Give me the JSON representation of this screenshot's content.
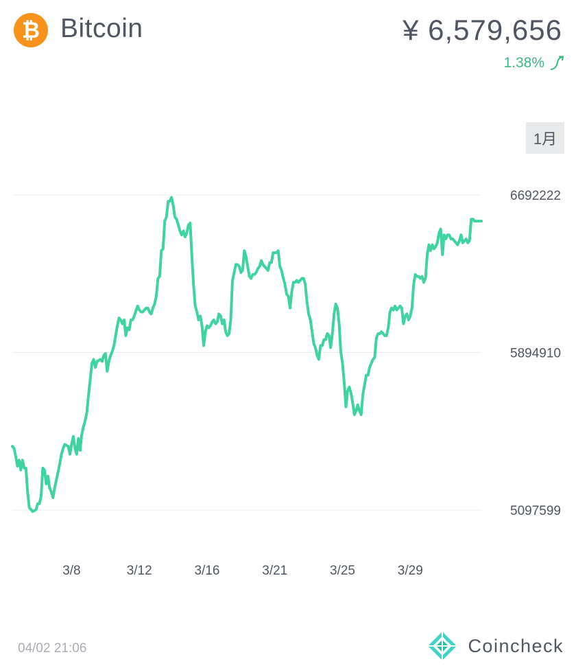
{
  "header": {
    "coin_symbol": "₿",
    "coin_name": "Bitcoin",
    "price": "¥ 6,579,656",
    "change": "1.38%"
  },
  "range_button": "1月",
  "footer": {
    "timestamp": "04/02 21:06",
    "brand": "Coincheck"
  },
  "colors": {
    "line": "#3fd3a0",
    "change_up": "#39b980",
    "coin": "#f7931a",
    "text": "#4f5561",
    "grid": "#ececec",
    "brand_logo": "#3fd3c8"
  },
  "chart_data": {
    "type": "line",
    "x_ticks": [
      "3/8",
      "3/12",
      "3/16",
      "3/21",
      "3/25",
      "3/29"
    ],
    "x_tick_positions": [
      4.2,
      8.2,
      12.2,
      16.2,
      20.2,
      24.2
    ],
    "y_ticks": [
      5097599,
      5894910,
      6692222
    ],
    "ylim": [
      5097599,
      6692222
    ],
    "xlim": [
      0.7,
      28.4
    ],
    "grid": true,
    "series": [
      {
        "values": [
          [
            0.7,
            5420000
          ],
          [
            0.8,
            5410000
          ],
          [
            0.9,
            5370000
          ],
          [
            1.0,
            5320000
          ],
          [
            1.1,
            5350000
          ],
          [
            1.2,
            5300000
          ],
          [
            1.3,
            5350000
          ],
          [
            1.4,
            5310000
          ],
          [
            1.5,
            5310000
          ],
          [
            1.6,
            5190000
          ],
          [
            1.7,
            5110000
          ],
          [
            1.8,
            5100000
          ],
          [
            1.9,
            5090000
          ],
          [
            2.1,
            5100000
          ],
          [
            2.2,
            5130000
          ],
          [
            2.3,
            5130000
          ],
          [
            2.4,
            5170000
          ],
          [
            2.5,
            5310000
          ],
          [
            2.6,
            5300000
          ],
          [
            2.7,
            5230000
          ],
          [
            2.8,
            5270000
          ],
          [
            2.9,
            5210000
          ],
          [
            3.0,
            5190000
          ],
          [
            3.1,
            5160000
          ],
          [
            3.2,
            5210000
          ],
          [
            3.4,
            5290000
          ],
          [
            3.5,
            5330000
          ],
          [
            3.6,
            5380000
          ],
          [
            3.7,
            5410000
          ],
          [
            3.8,
            5430000
          ],
          [
            4.0,
            5420000
          ],
          [
            4.1,
            5380000
          ],
          [
            4.2,
            5430000
          ],
          [
            4.3,
            5470000
          ],
          [
            4.4,
            5410000
          ],
          [
            4.5,
            5380000
          ],
          [
            4.6,
            5460000
          ],
          [
            4.7,
            5400000
          ],
          [
            4.8,
            5480000
          ],
          [
            4.9,
            5520000
          ],
          [
            5.0,
            5550000
          ],
          [
            5.1,
            5590000
          ],
          [
            5.2,
            5680000
          ],
          [
            5.3,
            5760000
          ],
          [
            5.4,
            5840000
          ],
          [
            5.5,
            5860000
          ],
          [
            5.6,
            5820000
          ],
          [
            5.7,
            5850000
          ],
          [
            5.9,
            5860000
          ],
          [
            6.0,
            5850000
          ],
          [
            6.1,
            5880000
          ],
          [
            6.2,
            5890000
          ],
          [
            6.3,
            5800000
          ],
          [
            6.4,
            5850000
          ],
          [
            6.5,
            5880000
          ],
          [
            6.6,
            5900000
          ],
          [
            6.7,
            5930000
          ],
          [
            6.8,
            5980000
          ],
          [
            6.9,
            6030000
          ],
          [
            7.0,
            6070000
          ],
          [
            7.1,
            6060000
          ],
          [
            7.2,
            6040000
          ],
          [
            7.3,
            6060000
          ],
          [
            7.4,
            5980000
          ],
          [
            7.5,
            6020000
          ],
          [
            7.6,
            6010000
          ],
          [
            7.7,
            6060000
          ],
          [
            7.8,
            6060000
          ],
          [
            7.9,
            6080000
          ],
          [
            8.1,
            6130000
          ],
          [
            8.2,
            6110000
          ],
          [
            8.3,
            6100000
          ],
          [
            8.4,
            6100000
          ],
          [
            8.6,
            6120000
          ],
          [
            8.7,
            6120000
          ],
          [
            8.8,
            6100000
          ],
          [
            8.9,
            6090000
          ],
          [
            9.0,
            6120000
          ],
          [
            9.1,
            6140000
          ],
          [
            9.2,
            6180000
          ],
          [
            9.3,
            6270000
          ],
          [
            9.4,
            6280000
          ],
          [
            9.5,
            6410000
          ],
          [
            9.6,
            6420000
          ],
          [
            9.7,
            6560000
          ],
          [
            9.8,
            6580000
          ],
          [
            9.9,
            6660000
          ],
          [
            10.0,
            6660000
          ],
          [
            10.1,
            6680000
          ],
          [
            10.2,
            6640000
          ],
          [
            10.3,
            6580000
          ],
          [
            10.4,
            6570000
          ],
          [
            10.5,
            6540000
          ],
          [
            10.6,
            6510000
          ],
          [
            10.7,
            6490000
          ],
          [
            10.8,
            6510000
          ],
          [
            10.9,
            6480000
          ],
          [
            11.0,
            6500000
          ],
          [
            11.1,
            6540000
          ],
          [
            11.2,
            6550000
          ],
          [
            11.3,
            6390000
          ],
          [
            11.4,
            6240000
          ],
          [
            11.5,
            6130000
          ],
          [
            11.6,
            6100000
          ],
          [
            11.7,
            6060000
          ],
          [
            11.8,
            6080000
          ],
          [
            11.9,
            6030000
          ],
          [
            12.0,
            5930000
          ],
          [
            12.1,
            6000000
          ],
          [
            12.2,
            6030000
          ],
          [
            12.3,
            6020000
          ],
          [
            12.4,
            6030000
          ],
          [
            12.5,
            6050000
          ],
          [
            12.6,
            6060000
          ],
          [
            12.7,
            6040000
          ],
          [
            12.8,
            6050000
          ],
          [
            12.9,
            6090000
          ],
          [
            13.0,
            6080000
          ],
          [
            13.1,
            6040000
          ],
          [
            13.2,
            6060000
          ],
          [
            13.3,
            6000000
          ],
          [
            13.4,
            5980000
          ],
          [
            13.5,
            5990000
          ],
          [
            13.6,
            6060000
          ],
          [
            13.7,
            6260000
          ],
          [
            13.8,
            6300000
          ],
          [
            13.9,
            6340000
          ],
          [
            14.0,
            6340000
          ],
          [
            14.1,
            6330000
          ],
          [
            14.2,
            6300000
          ],
          [
            14.3,
            6310000
          ],
          [
            14.4,
            6410000
          ],
          [
            14.5,
            6380000
          ],
          [
            14.6,
            6330000
          ],
          [
            14.7,
            6280000
          ],
          [
            14.8,
            6270000
          ],
          [
            14.9,
            6290000
          ],
          [
            15.0,
            6290000
          ],
          [
            15.1,
            6300000
          ],
          [
            15.2,
            6320000
          ],
          [
            15.3,
            6330000
          ],
          [
            15.4,
            6360000
          ],
          [
            15.5,
            6340000
          ],
          [
            15.6,
            6330000
          ],
          [
            15.7,
            6320000
          ],
          [
            15.8,
            6310000
          ],
          [
            15.9,
            6350000
          ],
          [
            16.0,
            6350000
          ],
          [
            16.1,
            6400000
          ],
          [
            16.2,
            6400000
          ],
          [
            16.3,
            6400000
          ],
          [
            16.4,
            6410000
          ],
          [
            16.5,
            6330000
          ],
          [
            16.6,
            6310000
          ],
          [
            16.7,
            6270000
          ],
          [
            16.8,
            6240000
          ],
          [
            16.9,
            6190000
          ],
          [
            17.0,
            6180000
          ],
          [
            17.1,
            6120000
          ],
          [
            17.2,
            6200000
          ],
          [
            17.3,
            6250000
          ],
          [
            17.4,
            6250000
          ],
          [
            17.5,
            6260000
          ],
          [
            17.6,
            6250000
          ],
          [
            17.7,
            6260000
          ],
          [
            17.8,
            6270000
          ],
          [
            17.9,
            6270000
          ],
          [
            18.0,
            6240000
          ],
          [
            18.1,
            6150000
          ],
          [
            18.2,
            6090000
          ],
          [
            18.3,
            6060000
          ],
          [
            18.4,
            6000000
          ],
          [
            18.5,
            5940000
          ],
          [
            18.6,
            5920000
          ],
          [
            18.7,
            5880000
          ],
          [
            18.8,
            5860000
          ],
          [
            18.9,
            5930000
          ],
          [
            19.0,
            5930000
          ],
          [
            19.1,
            5960000
          ],
          [
            19.2,
            5960000
          ],
          [
            19.3,
            5990000
          ],
          [
            19.4,
            5980000
          ],
          [
            19.5,
            5920000
          ],
          [
            19.6,
            5990000
          ],
          [
            19.7,
            6090000
          ],
          [
            19.8,
            6140000
          ],
          [
            19.9,
            6120000
          ],
          [
            20.0,
            6040000
          ],
          [
            20.1,
            5900000
          ],
          [
            20.2,
            5840000
          ],
          [
            20.3,
            5740000
          ],
          [
            20.4,
            5620000
          ],
          [
            20.5,
            5700000
          ],
          [
            20.6,
            5720000
          ],
          [
            20.7,
            5690000
          ],
          [
            20.8,
            5640000
          ],
          [
            20.9,
            5580000
          ],
          [
            21.0,
            5600000
          ],
          [
            21.1,
            5630000
          ],
          [
            21.2,
            5600000
          ],
          [
            21.3,
            5580000
          ],
          [
            21.4,
            5680000
          ],
          [
            21.5,
            5730000
          ],
          [
            21.6,
            5780000
          ],
          [
            21.7,
            5780000
          ],
          [
            21.8,
            5820000
          ],
          [
            21.9,
            5840000
          ],
          [
            22.0,
            5860000
          ],
          [
            22.1,
            5870000
          ],
          [
            22.2,
            5970000
          ],
          [
            22.3,
            5990000
          ],
          [
            22.4,
            5990000
          ],
          [
            22.5,
            6000000
          ],
          [
            22.6,
            5990000
          ],
          [
            22.7,
            5980000
          ],
          [
            22.8,
            5980000
          ],
          [
            22.9,
            6020000
          ],
          [
            23.0,
            6100000
          ],
          [
            23.1,
            6120000
          ],
          [
            23.2,
            6110000
          ],
          [
            23.3,
            6130000
          ],
          [
            23.4,
            6110000
          ],
          [
            23.5,
            6120000
          ],
          [
            23.6,
            6130000
          ],
          [
            23.7,
            6120000
          ],
          [
            23.8,
            6040000
          ],
          [
            23.9,
            6080000
          ],
          [
            24.0,
            6090000
          ],
          [
            24.1,
            6060000
          ],
          [
            24.2,
            6080000
          ],
          [
            24.3,
            6120000
          ],
          [
            24.4,
            6240000
          ],
          [
            24.5,
            6290000
          ],
          [
            24.6,
            6280000
          ],
          [
            24.7,
            6280000
          ],
          [
            24.8,
            6270000
          ],
          [
            24.9,
            6280000
          ],
          [
            25.0,
            6250000
          ],
          [
            25.1,
            6270000
          ],
          [
            25.2,
            6390000
          ],
          [
            25.3,
            6440000
          ],
          [
            25.4,
            6410000
          ],
          [
            25.5,
            6440000
          ],
          [
            25.6,
            6420000
          ],
          [
            25.7,
            6430000
          ],
          [
            25.8,
            6450000
          ],
          [
            25.9,
            6500000
          ],
          [
            26.0,
            6520000
          ],
          [
            26.1,
            6390000
          ],
          [
            26.2,
            6490000
          ],
          [
            26.3,
            6470000
          ],
          [
            26.4,
            6490000
          ],
          [
            26.5,
            6490000
          ],
          [
            26.6,
            6470000
          ],
          [
            26.7,
            6470000
          ],
          [
            26.8,
            6460000
          ],
          [
            26.9,
            6450000
          ],
          [
            27.0,
            6440000
          ],
          [
            27.1,
            6460000
          ],
          [
            27.2,
            6490000
          ],
          [
            27.3,
            6450000
          ],
          [
            27.4,
            6460000
          ],
          [
            27.5,
            6470000
          ],
          [
            27.6,
            6450000
          ],
          [
            27.7,
            6460000
          ],
          [
            27.8,
            6570000
          ],
          [
            27.9,
            6570000
          ],
          [
            28.0,
            6560000
          ],
          [
            28.4,
            6560000
          ]
        ]
      }
    ]
  }
}
